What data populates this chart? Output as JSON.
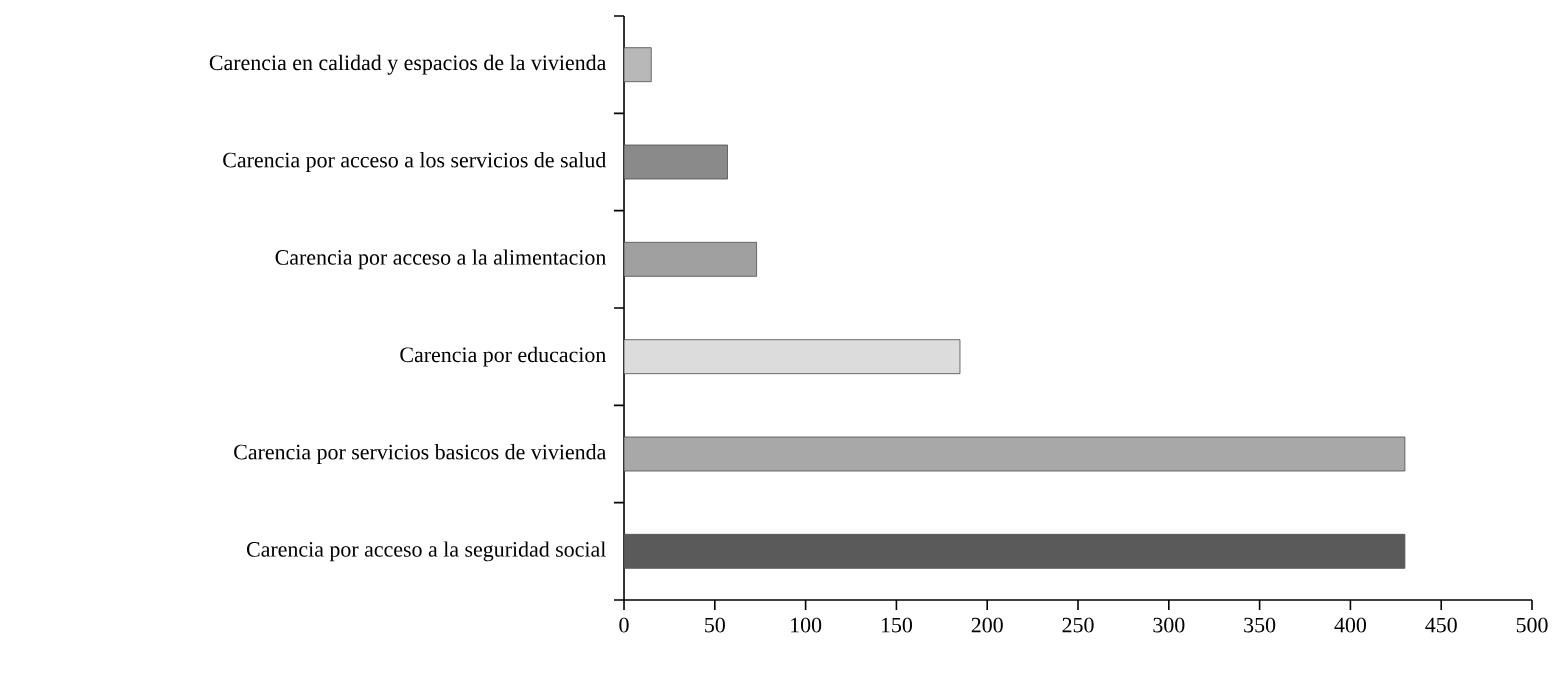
{
  "chart_data": {
    "type": "bar",
    "orientation": "horizontal",
    "categories": [
      "Carencia en calidad y espacios de la vivienda",
      "Carencia por acceso a los servicios de salud",
      "Carencia por acceso a la alimentacion",
      "Carencia por educacion",
      "Carencia por servicios basicos de vivienda",
      "Carencia por acceso a la seguridad social"
    ],
    "values": [
      15,
      57,
      73,
      185,
      430,
      430
    ],
    "colors": [
      "#b8b8b8",
      "#8a8a8a",
      "#a0a0a0",
      "#dcdcdc",
      "#a8a8a8",
      "#5a5a5a"
    ],
    "xlim": [
      0,
      500
    ],
    "xticks": [
      0,
      50,
      100,
      150,
      200,
      250,
      300,
      350,
      400,
      450,
      500
    ]
  }
}
